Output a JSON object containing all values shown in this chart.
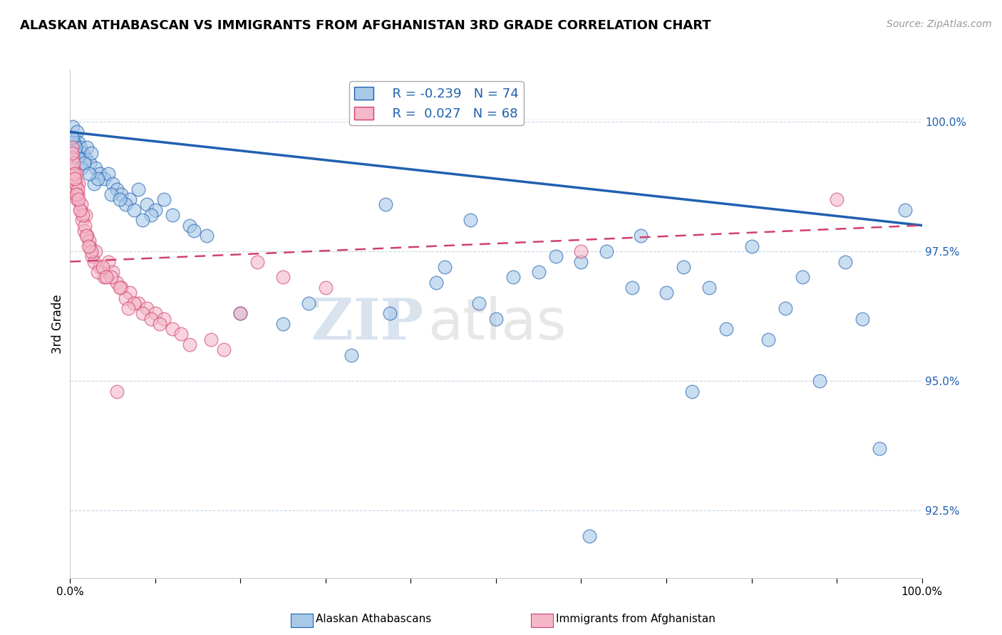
{
  "title": "ALASKAN ATHABASCAN VS IMMIGRANTS FROM AFGHANISTAN 3RD GRADE CORRELATION CHART",
  "source_text": "Source: ZipAtlas.com",
  "ylabel": "3rd Grade",
  "R_blue": -0.239,
  "N_blue": 74,
  "R_pink": 0.027,
  "N_pink": 68,
  "blue_color": "#a8c8e8",
  "pink_color": "#f4b8c8",
  "blue_line_color": "#2060b0",
  "pink_line_color": "#d04070",
  "pink_dash_color": "#e08898",
  "watermark_zip": "ZIP",
  "watermark_atlas": "atlas",
  "ymin": 91.2,
  "ymax": 101.0,
  "xmin": 0.0,
  "xmax": 100.0,
  "yticks": [
    92.5,
    95.0,
    97.5,
    100.0
  ],
  "legend_blue_label": "Alaskan Athabascans",
  "legend_pink_label": "Immigrants from Afghanistan",
  "blue_line_x0": 0.0,
  "blue_line_y0": 99.8,
  "blue_line_x1": 100.0,
  "blue_line_y1": 98.0,
  "pink_line_x0": 0.0,
  "pink_line_y0": 97.3,
  "pink_line_x1": 100.0,
  "pink_line_y1": 98.0,
  "blue_scatter_x": [
    0.3,
    0.5,
    0.8,
    1.0,
    1.2,
    1.5,
    1.8,
    2.0,
    2.3,
    2.5,
    3.0,
    3.5,
    4.0,
    4.5,
    5.0,
    5.5,
    6.0,
    7.0,
    8.0,
    9.0,
    10.0,
    11.0,
    12.0,
    14.0,
    16.0,
    0.4,
    0.9,
    1.3,
    2.8,
    4.8,
    6.5,
    9.5,
    14.5,
    0.6,
    1.6,
    3.2,
    5.8,
    8.5,
    0.2,
    2.2,
    7.5,
    37.0,
    47.0,
    52.0,
    63.0,
    67.0,
    72.0,
    80.0,
    86.0,
    91.0,
    98.0,
    75.0,
    57.0,
    44.0,
    28.0,
    20.0,
    43.0,
    60.0,
    84.0,
    93.0,
    70.0,
    77.0,
    55.0,
    66.0,
    82.0,
    48.0,
    37.5,
    25.0,
    33.0,
    50.0,
    88.0,
    95.0,
    73.0,
    61.0
  ],
  "blue_scatter_y": [
    99.9,
    99.7,
    99.8,
    99.6,
    99.5,
    99.4,
    99.3,
    99.5,
    99.2,
    99.4,
    99.1,
    99.0,
    98.9,
    99.0,
    98.8,
    98.7,
    98.6,
    98.5,
    98.7,
    98.4,
    98.3,
    98.5,
    98.2,
    98.0,
    97.8,
    99.6,
    99.3,
    99.1,
    98.8,
    98.6,
    98.4,
    98.2,
    97.9,
    99.5,
    99.2,
    98.9,
    98.5,
    98.1,
    99.7,
    99.0,
    98.3,
    98.4,
    98.1,
    97.0,
    97.5,
    97.8,
    97.2,
    97.6,
    97.0,
    97.3,
    98.3,
    96.8,
    97.4,
    97.2,
    96.5,
    96.3,
    96.9,
    97.3,
    96.4,
    96.2,
    96.7,
    96.0,
    97.1,
    96.8,
    95.8,
    96.5,
    96.3,
    96.1,
    95.5,
    96.2,
    95.0,
    93.7,
    94.8,
    92.0
  ],
  "pink_scatter_x": [
    0.2,
    0.3,
    0.4,
    0.5,
    0.6,
    0.7,
    0.8,
    1.0,
    1.2,
    1.4,
    1.6,
    1.8,
    2.0,
    2.3,
    2.6,
    3.0,
    3.5,
    4.0,
    4.5,
    5.0,
    5.5,
    6.0,
    7.0,
    8.0,
    9.0,
    10.0,
    11.0,
    0.35,
    0.65,
    0.9,
    1.3,
    1.7,
    2.2,
    2.8,
    3.2,
    0.45,
    0.85,
    1.5,
    2.5,
    4.8,
    6.5,
    8.5,
    12.0,
    16.5,
    22.0,
    0.55,
    0.75,
    1.1,
    1.9,
    3.8,
    5.8,
    7.5,
    9.5,
    13.0,
    18.0,
    25.0,
    0.25,
    0.95,
    2.1,
    4.2,
    6.8,
    10.5,
    14.0,
    20.0,
    30.0,
    60.0,
    90.0,
    5.5
  ],
  "pink_scatter_y": [
    99.5,
    99.3,
    99.1,
    98.9,
    98.7,
    99.0,
    98.5,
    98.8,
    98.3,
    98.1,
    97.9,
    98.2,
    97.8,
    97.6,
    97.4,
    97.5,
    97.2,
    97.0,
    97.3,
    97.1,
    96.9,
    96.8,
    96.7,
    96.5,
    96.4,
    96.3,
    96.2,
    99.2,
    98.8,
    98.6,
    98.4,
    98.0,
    97.7,
    97.3,
    97.1,
    99.0,
    98.7,
    98.2,
    97.5,
    97.0,
    96.6,
    96.3,
    96.0,
    95.8,
    97.3,
    98.9,
    98.6,
    98.3,
    97.8,
    97.2,
    96.8,
    96.5,
    96.2,
    95.9,
    95.6,
    97.0,
    99.4,
    98.5,
    97.6,
    97.0,
    96.4,
    96.1,
    95.7,
    96.3,
    96.8,
    97.5,
    98.5,
    94.8
  ]
}
